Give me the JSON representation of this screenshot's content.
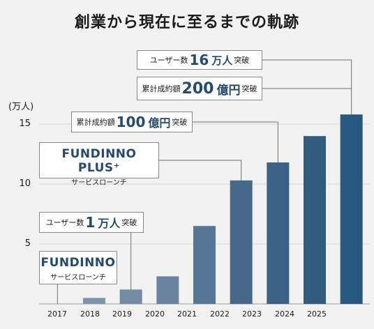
{
  "title": "創業から現在に至るまでの軌跡",
  "unit_label": "(万人)",
  "chart_data": {
    "type": "bar",
    "categories": [
      "2017",
      "2018",
      "2019",
      "2020",
      "2021",
      "2022",
      "2023",
      "2024",
      "2025"
    ],
    "values": [
      0,
      0.5,
      1.2,
      2.3,
      6.5,
      10.3,
      11.8,
      14.0,
      15.8
    ],
    "ylim": [
      0,
      20
    ],
    "yticks": [
      "5",
      "10",
      "15"
    ],
    "grid": true,
    "colors": [
      "#d7dde4",
      "#7d94ab",
      "#738ba4",
      "#6a839e",
      "#557694",
      "#46698a",
      "#3b6285",
      "#315c80",
      "#27587d"
    ]
  },
  "callouts": {
    "users_160k": {
      "prefix": "ユーザー数",
      "value": "16",
      "suffix_big": "万人",
      "suffix": "突破"
    },
    "funds_200": {
      "prefix": "累計成約額",
      "value": "200",
      "suffix_big": "億円",
      "suffix": "突破"
    },
    "funds_100": {
      "prefix": "累計成約額",
      "value": "100",
      "suffix_big": "億円",
      "suffix": "突破"
    },
    "users_10k": {
      "prefix": "ユーザー数",
      "value": "1",
      "suffix_big": "万人",
      "suffix": "突破"
    },
    "plus": {
      "name": "FUNDINNO PLUS⁺",
      "sub": "サービスローンチ"
    },
    "fundinno": {
      "name": "FUNDINNO",
      "sub": "サービスローンチ"
    }
  }
}
